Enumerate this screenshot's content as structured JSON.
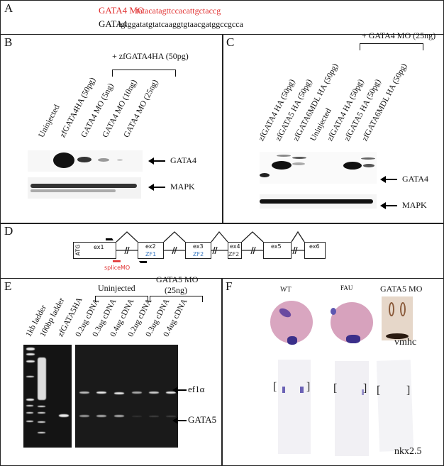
{
  "panels": {
    "a": "A",
    "b": "B",
    "c": "C",
    "d": "D",
    "e": "E",
    "f": "F"
  },
  "panel_a": {
    "mo_label": "GATA4 MO",
    "mo_seq": "tatacatagttccacattgctaccg",
    "gene_label": "GATA4",
    "gene_seq": "tgtggatatgtatcaaggtgtaacgatggccgcca",
    "mo_color": "#e03030"
  },
  "panel_b": {
    "lanes": [
      "Uninjected",
      "zfGATA4HA (50pg)",
      "GATA4 MO (5ng)",
      "GATA4 MO (10ng)",
      "GATA4 MO (25ng)"
    ],
    "bracket": "+ zfGATA4HA (50pg)",
    "bands": [
      "GATA4",
      "MAPK"
    ]
  },
  "panel_c": {
    "lanes": [
      "zfGATA4 HA (50pg)",
      "zfGATA5 HA (50pg)",
      "zfGATA6MDL HA (50pg)",
      "Uninjected",
      "zfGATA4 HA (50pg)",
      "zfGATA5 HA (50pg)",
      "zfGATA6MDL HA (50pg)"
    ],
    "bracket": "+ GATA4 MO (25ng)",
    "bands": [
      "GATA4",
      "MAPK"
    ]
  },
  "panel_d": {
    "atg": "ATG",
    "exons": [
      "ex1",
      "ex2",
      "ex3",
      "ex4",
      "ex5",
      "ex6"
    ],
    "zf": [
      "ZF1",
      "ZF2",
      "ZF2"
    ],
    "splice_mo": "spliceMO",
    "zf_color": "#3a78c0",
    "mo_color": "#e03030"
  },
  "panel_e": {
    "lanes": [
      "1kb ladder",
      "100bp ladder",
      "zfGATA5HA",
      "0.2ug cDNA",
      "0.3ug cDNA",
      "0.4ug cDNA",
      "0.2ug cDNA",
      "0.3ug cDNA",
      "0.4ug cDNA"
    ],
    "group1": "Uninjected",
    "group2_line1": "GATA5 MO",
    "group2_line2": "(25ng)",
    "bands": [
      "ef1α",
      "GATA5"
    ]
  },
  "panel_f": {
    "columns": [
      "WT",
      "FAU",
      "GATA5 MO"
    ],
    "marker1": "vmhc",
    "marker2": "nkx2.5"
  }
}
